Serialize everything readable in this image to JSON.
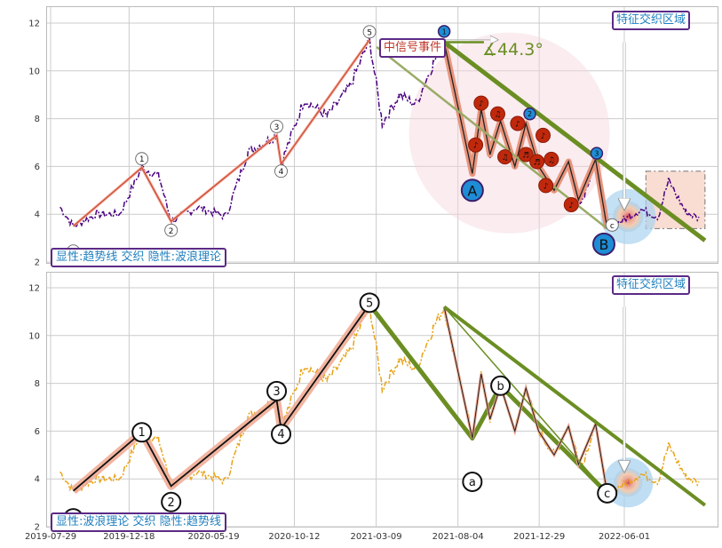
{
  "chart_data": [
    {
      "type": "line",
      "panel": "top",
      "ylim": [
        2,
        12.5
      ],
      "yticks": [
        2,
        4,
        6,
        8,
        10,
        12
      ],
      "grid": true,
      "price_color": "#4b0082",
      "wave_points": [
        {
          "date": "2019-09-08",
          "y": 3.5,
          "label": "0"
        },
        {
          "date": "2020-01-10",
          "y": 5.95,
          "label": "1"
        },
        {
          "date": "2020-03-03",
          "y": 3.7,
          "label": "2"
        },
        {
          "date": "2020-09-10",
          "y": 7.3,
          "label": "3"
        },
        {
          "date": "2020-09-18",
          "y": 6.1,
          "label": "4"
        },
        {
          "date": "2021-02-25",
          "y": 11.3,
          "label": "5"
        }
      ],
      "trend_peak_label": "1",
      "labels_after_peak": [
        "2",
        "3"
      ],
      "big_labels": [
        "A",
        "B"
      ],
      "event_label": "中信号事件",
      "angle_text": "∡44.3°",
      "region_label": "特征交织区域",
      "caption": "显性:趋势线 交织 隐性:波浪理论"
    },
    {
      "type": "line",
      "panel": "bottom",
      "ylim": [
        2,
        12.5
      ],
      "yticks": [
        2,
        4,
        6,
        8,
        10,
        12
      ],
      "grid": true,
      "price_color": "#e8a317",
      "wave_points": [
        {
          "date": "2019-09-08",
          "y": 3.5,
          "label": "0"
        },
        {
          "date": "2020-01-10",
          "y": 5.95,
          "label": "1"
        },
        {
          "date": "2020-03-03",
          "y": 3.7,
          "label": "2"
        },
        {
          "date": "2020-09-10",
          "y": 7.3,
          "label": "3"
        },
        {
          "date": "2020-09-18",
          "y": 6.1,
          "label": "4"
        },
        {
          "date": "2021-02-25",
          "y": 11.3,
          "label": "5"
        }
      ],
      "abc_points": [
        {
          "date": "2021-08-30",
          "y": 5.7,
          "label": "a"
        },
        {
          "date": "2021-10-20",
          "y": 7.9,
          "label": "b"
        },
        {
          "date": "2022-05-01",
          "y": 3.4,
          "label": "c"
        }
      ],
      "region_label": "特征交织区域",
      "caption": "显性:波浪理论 交织 隐性:趋势线"
    }
  ],
  "x_ticks": [
    "2019-07-29",
    "2019-12-18",
    "2020-05-19",
    "2020-10-12",
    "2021-03-09",
    "2021-08-04",
    "2021-12-29",
    "2022-06-01"
  ]
}
